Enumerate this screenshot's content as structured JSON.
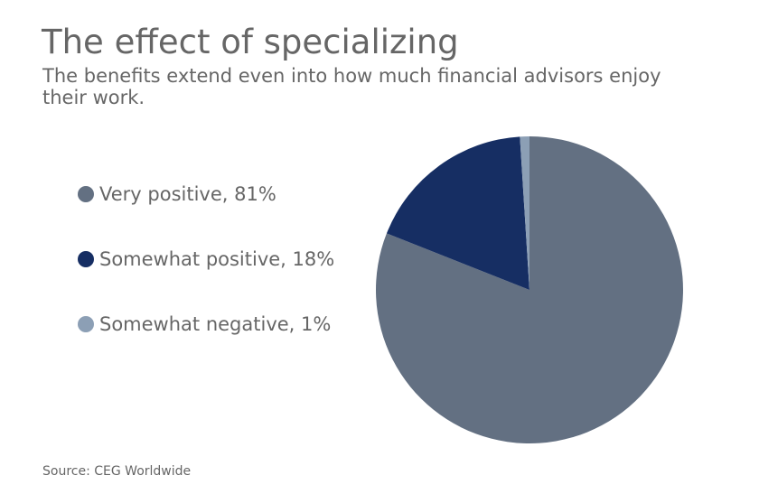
{
  "chart_data": {
    "type": "pie",
    "title": "The effect of specializing",
    "subtitle": "The benefits extend even into how much financial advisors enjoy their work.",
    "slices": [
      {
        "label": "Very positive, 81%",
        "name": "Very positive",
        "value": 81,
        "color": "#637082"
      },
      {
        "label": "Somewhat positive, 18%",
        "name": "Somewhat positive",
        "value": 18,
        "color": "#162e63"
      },
      {
        "label": "Somewhat negative, 1%",
        "name": "Somewhat negative",
        "value": 1,
        "color": "#8c9fb5"
      }
    ],
    "legend_position": "left",
    "source": "Source: CEG Worldwide"
  }
}
